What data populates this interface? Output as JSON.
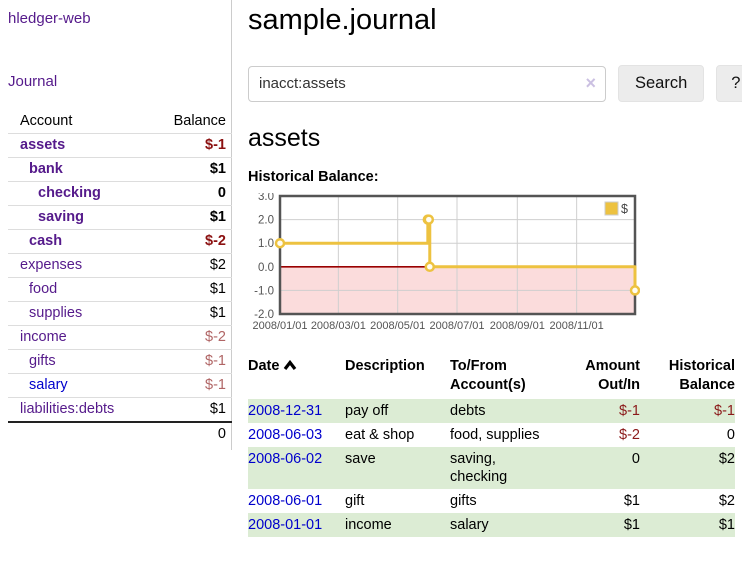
{
  "app": {
    "title": "hledger-web"
  },
  "colors": {
    "link_purple": "#551a8b",
    "link_blue": "#0000cc",
    "negative_strong": "#8b1010",
    "negative_muted": "#b06565",
    "table_negative": "#8b1a1a",
    "row_green": "#dcecd4",
    "series_gold": "#edc240"
  },
  "sidebar": {
    "journal_link": "Journal",
    "accounts": {
      "headers": {
        "account": "Account",
        "balance": "Balance"
      },
      "rows": [
        {
          "name": "assets",
          "balance": "$-1",
          "depth": 1,
          "selected": true,
          "balance_style": "negative-strong"
        },
        {
          "name": "bank",
          "balance": "$1",
          "depth": 2,
          "selected": true,
          "balance_style": "strong"
        },
        {
          "name": "checking",
          "balance": "0",
          "depth": 3,
          "selected": true,
          "balance_style": "strong"
        },
        {
          "name": "saving",
          "balance": "$1",
          "depth": 3,
          "selected": true,
          "balance_style": "strong"
        },
        {
          "name": "cash",
          "balance": "$-2",
          "depth": 2,
          "selected": true,
          "balance_style": "negative-strong"
        },
        {
          "name": "expenses",
          "balance": "$2",
          "depth": 1,
          "selected": false,
          "balance_style": "normal"
        },
        {
          "name": "food",
          "balance": "$1",
          "depth": 2,
          "selected": false,
          "balance_style": "normal"
        },
        {
          "name": "supplies",
          "balance": "$1",
          "depth": 2,
          "selected": false,
          "balance_style": "normal"
        },
        {
          "name": "income",
          "balance": "$-2",
          "depth": 1,
          "selected": false,
          "balance_style": "negative-muted"
        },
        {
          "name": "gifts",
          "balance": "$-1",
          "depth": 2,
          "selected": false,
          "balance_style": "negative-muted"
        },
        {
          "name": "salary",
          "balance": "$-1",
          "depth": 2,
          "selected": false,
          "balance_style": "negative-muted",
          "link": "unvisited"
        },
        {
          "name": "liabilities:debts",
          "balance": "$1",
          "depth": 1,
          "selected": false,
          "balance_style": "normal"
        }
      ],
      "total": "0"
    }
  },
  "main": {
    "title": "sample.journal",
    "search": {
      "value": "inacct:assets",
      "clear_icon": "×",
      "button_label": "Search",
      "help_label": "?"
    },
    "account_heading": "assets",
    "register": {
      "headers": {
        "date": "Date",
        "description": "Description",
        "accounts": "To/From Account(s)",
        "amount": "Amount Out/In",
        "balance": "Historical Balance"
      },
      "rows": [
        {
          "date": "2008-12-31",
          "description": "pay off",
          "accounts": "debts",
          "amount": "$-1",
          "balance": "$-1",
          "amount_negative": true,
          "balance_negative": true
        },
        {
          "date": "2008-06-03",
          "description": "eat & shop",
          "accounts": "food, supplies",
          "amount": "$-2",
          "balance": "0",
          "amount_negative": true,
          "balance_negative": false
        },
        {
          "date": "2008-06-02",
          "description": "save",
          "accounts": "saving, checking",
          "amount": "0",
          "balance": "$2",
          "amount_negative": false,
          "balance_negative": false
        },
        {
          "date": "2008-06-01",
          "description": "gift",
          "accounts": "gifts",
          "amount": "$1",
          "balance": "$2",
          "amount_negative": false,
          "balance_negative": false
        },
        {
          "date": "2008-01-01",
          "description": "income",
          "accounts": "salary",
          "amount": "$1",
          "balance": "$1",
          "amount_negative": false,
          "balance_negative": false
        }
      ]
    }
  },
  "chart_data": {
    "type": "line",
    "title": "Historical Balance:",
    "line_style": "step",
    "series": [
      {
        "name": "$",
        "color": "#edc240",
        "points": [
          [
            "2008-01-01",
            1
          ],
          [
            "2008-06-01",
            2
          ],
          [
            "2008-06-02",
            2
          ],
          [
            "2008-06-03",
            0
          ],
          [
            "2008-12-31",
            -1
          ]
        ]
      }
    ],
    "xlim": [
      "2008-01-01",
      "2008-12-31"
    ],
    "ylim": [
      -2,
      3
    ],
    "x_ticks": [
      "2008/01/01",
      "2008/03/01",
      "2008/05/01",
      "2008/07/01",
      "2008/09/01",
      "2008/11/01"
    ],
    "y_ticks": [
      3,
      2,
      1,
      0,
      -1,
      -2
    ],
    "grid": true,
    "legend_position": "top-right",
    "negative_region_color": "#fbdcdc",
    "zero_line_color": "#990000",
    "border_color": "#545454",
    "grid_color": "#cfcfcf",
    "axis_text_color": "#545454"
  }
}
